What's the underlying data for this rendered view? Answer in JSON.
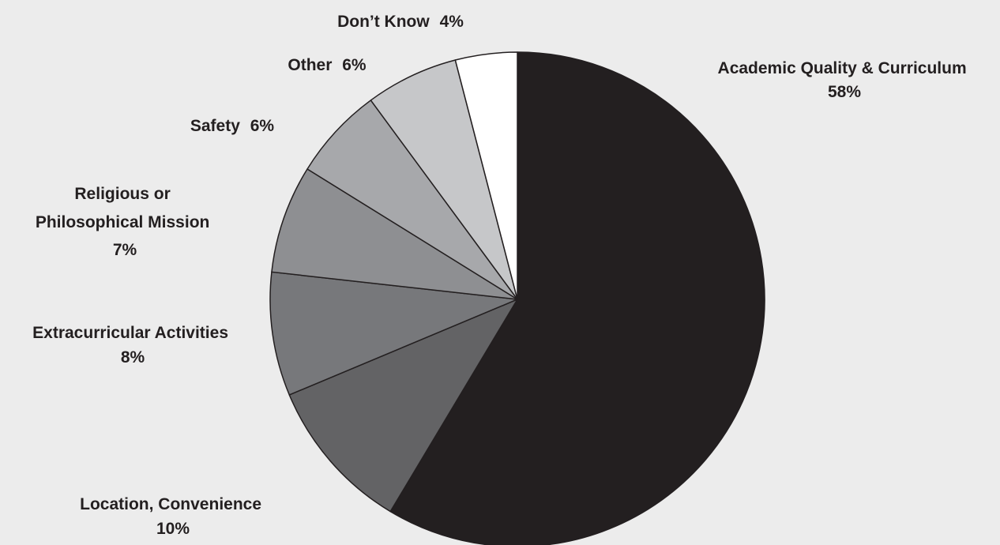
{
  "chart_data": {
    "type": "pie",
    "title": "",
    "start": "top",
    "direction": "clockwise",
    "slices": [
      {
        "label": "Academic Quality & Curriculum",
        "value": 58,
        "value_label": "58%",
        "color": "#231f20"
      },
      {
        "label": "Location, Convenience",
        "value": 10,
        "value_label": "10%",
        "color": "#636365"
      },
      {
        "label": "Extracurricular Activities",
        "value": 8,
        "value_label": "8%",
        "color": "#77787b"
      },
      {
        "label": "Religious or Philosophical Mission",
        "value": 7,
        "value_label": "7%",
        "color": "#8e8f92"
      },
      {
        "label": "Safety",
        "value": 6,
        "value_label": "6%",
        "color": "#a7a8ab"
      },
      {
        "label": "Other",
        "value": 6,
        "value_label": "6%",
        "color": "#c6c7c9"
      },
      {
        "label": "Don’t Know",
        "value": 4,
        "value_label": "4%",
        "color": "#ffffff"
      }
    ]
  }
}
